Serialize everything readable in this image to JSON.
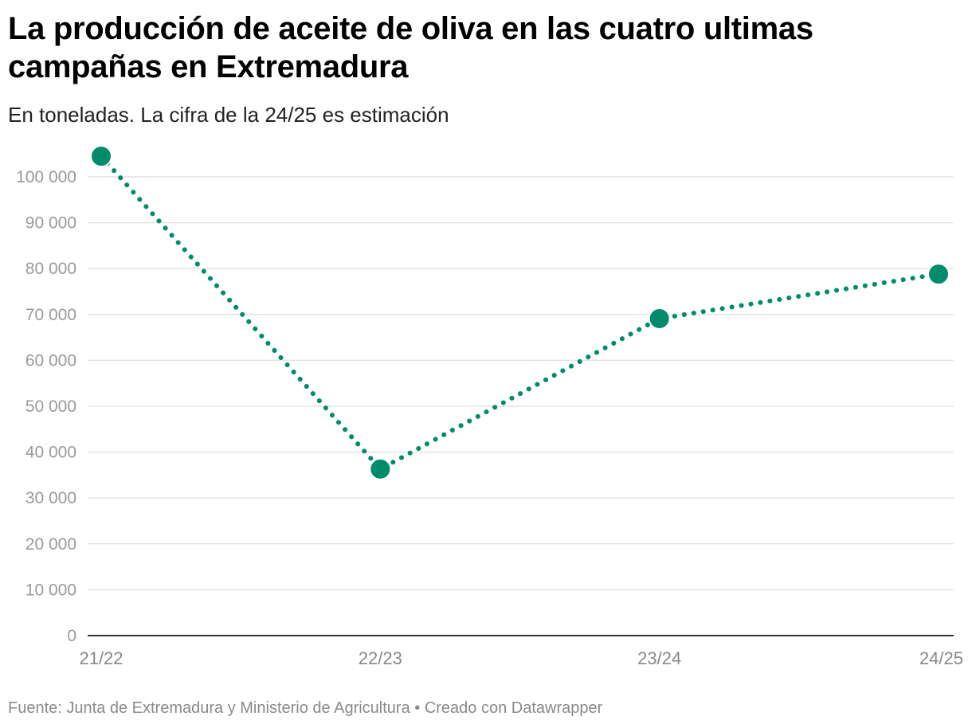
{
  "title": "La producción de aceite de oliva en las cuatro ultimas campañas en Extremadura",
  "subtitle": "En toneladas. La cifra de la 24/25 es estimación",
  "footer": "Fuente: Junta de Extremadura y Ministerio de Agricultura • Creado con Datawrapper",
  "colors": {
    "series": "#008b6b",
    "grid": "#e3e3e3",
    "axis": "#333333"
  },
  "chart_data": {
    "type": "line",
    "categories": [
      "21/22",
      "22/23",
      "23/24",
      "24/25"
    ],
    "values": [
      104500,
      36300,
      69100,
      78800
    ],
    "ylim": [
      0,
      100000
    ],
    "yticks": [
      0,
      10000,
      20000,
      30000,
      40000,
      50000,
      60000,
      70000,
      80000,
      90000,
      100000
    ],
    "ytick_labels": [
      "0",
      "10 000",
      "20 000",
      "30 000",
      "40 000",
      "50 000",
      "60 000",
      "70 000",
      "80 000",
      "90 000",
      "100 000"
    ],
    "line_style": "dotted",
    "grid": true,
    "xlabel": "",
    "ylabel": ""
  }
}
